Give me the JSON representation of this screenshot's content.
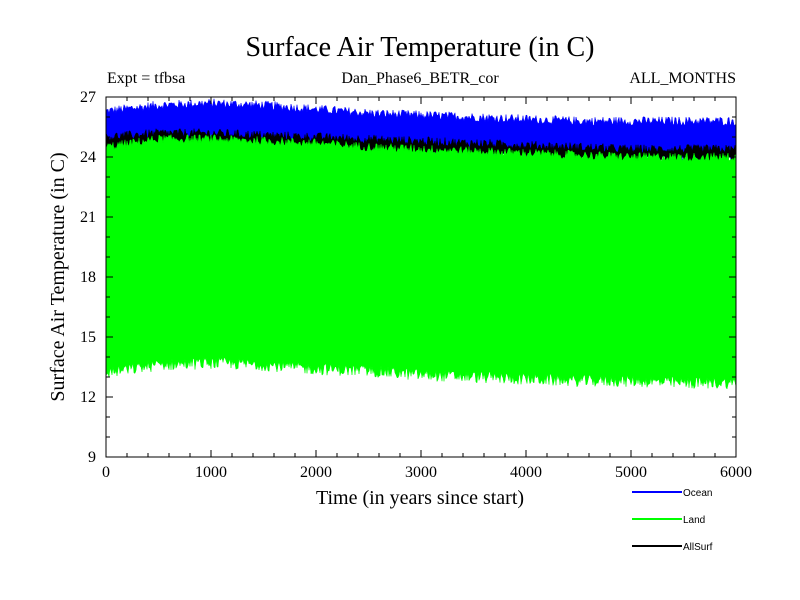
{
  "chart_data": {
    "type": "area",
    "title": "Surface Air Temperature (in C)",
    "subtitle_left": "Expt = tfbsa",
    "subtitle_center": "Dan_Phase6_BETR_cor",
    "subtitle_right": "ALL_MONTHS",
    "xlabel": "Time (in years since start)",
    "ylabel": "Surface Air Temperature (in C)",
    "xlim": [
      0,
      6000
    ],
    "ylim": [
      9,
      27
    ],
    "xticks": [
      0,
      1000,
      2000,
      3000,
      4000,
      5000,
      6000
    ],
    "yticks": [
      9,
      12,
      15,
      18,
      21,
      24,
      27
    ],
    "grid": false,
    "legend_position": "bottom-right",
    "series": [
      {
        "name": "Ocean",
        "color": "#0000ff",
        "x": [
          0,
          500,
          1000,
          1500,
          2000,
          2500,
          3000,
          3500,
          4000,
          4500,
          5000,
          5500,
          6000
        ],
        "low": [
          24.6,
          24.8,
          24.8,
          24.7,
          24.6,
          24.5,
          24.4,
          24.3,
          24.2,
          24.1,
          24.0,
          24.0,
          24.0
        ],
        "high": [
          26.3,
          26.6,
          26.7,
          26.6,
          26.4,
          26.2,
          26.1,
          26.0,
          25.9,
          25.8,
          25.8,
          25.8,
          25.8
        ]
      },
      {
        "name": "Land",
        "color": "#00ff00",
        "x": [
          0,
          500,
          1000,
          1500,
          2000,
          2500,
          3000,
          3500,
          4000,
          4500,
          5000,
          5500,
          6000
        ],
        "low": [
          13.2,
          13.6,
          13.7,
          13.6,
          13.4,
          13.3,
          13.1,
          13.0,
          12.9,
          12.8,
          12.8,
          12.7,
          12.7
        ],
        "high": [
          24.5,
          24.9,
          24.9,
          24.8,
          24.7,
          24.5,
          24.4,
          24.3,
          24.2,
          24.1,
          24.0,
          24.0,
          24.0
        ]
      },
      {
        "name": "AllSurf",
        "color": "#000000",
        "x": [
          0,
          500,
          1000,
          1500,
          2000,
          2500,
          3000,
          3500,
          4000,
          4500,
          5000,
          5500,
          6000
        ],
        "low": [
          24.3,
          24.5,
          24.5,
          24.4,
          24.3,
          24.2,
          24.1,
          24.0,
          23.9,
          23.8,
          23.8,
          23.8,
          23.8
        ],
        "high": [
          25.0,
          25.2,
          25.2,
          25.1,
          25.0,
          24.9,
          24.8,
          24.7,
          24.6,
          24.5,
          24.4,
          24.4,
          24.4
        ]
      }
    ]
  }
}
